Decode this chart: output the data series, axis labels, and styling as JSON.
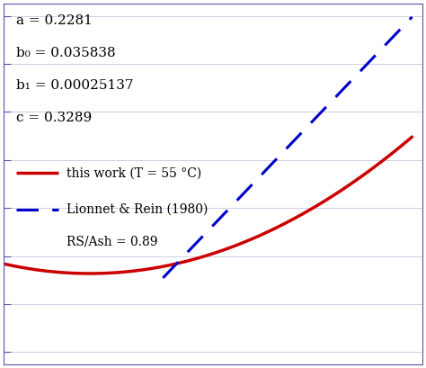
{
  "a": 0.2281,
  "b0": 0.035838,
  "b1": 0.00025137,
  "c": 0.3289,
  "param_text": [
    "a = 0.2281",
    "b₀ = 0.035838",
    "b₁ = 0.00025137",
    "c = 0.3289"
  ],
  "legend_line1": "this work (T = 55 °C)",
  "legend_line2": "Lionnet & Rein (1980)\nRS/Ash = 0.89",
  "x_min": -80,
  "x_max": 40,
  "y_min": -0.05,
  "y_max": 1.4,
  "red_color": "#cc0000",
  "blue_color": "#0000cc",
  "background": "#ffffff",
  "tick_color": "#5555aa",
  "dashes": [
    8,
    5
  ]
}
